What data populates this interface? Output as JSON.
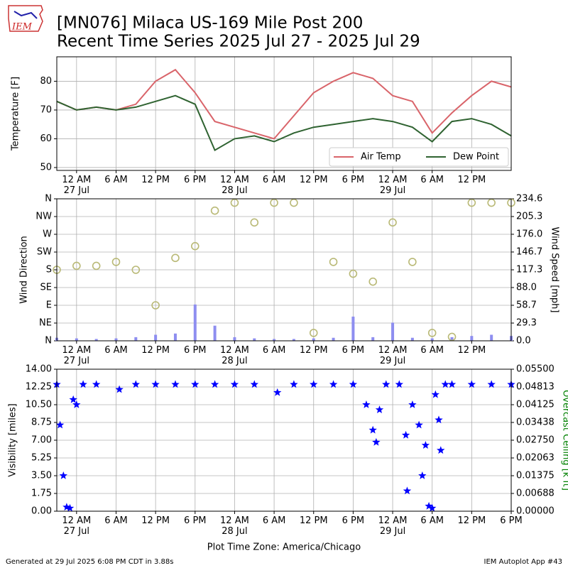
{
  "header": {
    "title_line1": "[MN076] Milaca US-169 Mile Post 200",
    "title_line2": "Recent Time Series 2025 Jul 27 - 2025 Jul 29",
    "logo_text": "IEM"
  },
  "footer": {
    "left": "Generated at 29 Jul 2025 6:08 PM CDT in 3.88s",
    "right": "IEM Autoplot App #43"
  },
  "chart_data": [
    {
      "type": "line",
      "ylabel": "Temperature [F]",
      "grid": true,
      "legend": "lower right",
      "xlim": [
        "2025-07-26T21:00",
        "2025-07-29T18:00"
      ],
      "ylim": [
        49,
        88.5
      ],
      "yticks": [
        50,
        60,
        70,
        80
      ],
      "xticks": [
        {
          "value": "2025-07-27T00:00",
          "label": "12 AM\n27 Jul"
        },
        {
          "value": "2025-07-27T06:00",
          "label": "6 AM"
        },
        {
          "value": "2025-07-27T12:00",
          "label": "12 PM"
        },
        {
          "value": "2025-07-27T18:00",
          "label": "6 PM"
        },
        {
          "value": "2025-07-28T00:00",
          "label": "12 AM\n28 Jul"
        },
        {
          "value": "2025-07-28T06:00",
          "label": "6 AM"
        },
        {
          "value": "2025-07-28T12:00",
          "label": "12 PM"
        },
        {
          "value": "2025-07-28T18:00",
          "label": "6 PM"
        },
        {
          "value": "2025-07-29T00:00",
          "label": "12 AM\n29 Jul"
        },
        {
          "value": "2025-07-29T06:00",
          "label": "6 AM"
        },
        {
          "value": "2025-07-29T12:00",
          "label": "12 PM"
        }
      ],
      "x": [
        "2025-07-26T21:00",
        "2025-07-27T00:00",
        "2025-07-27T03:00",
        "2025-07-27T06:00",
        "2025-07-27T09:00",
        "2025-07-27T12:00",
        "2025-07-27T15:00",
        "2025-07-27T18:00",
        "2025-07-27T21:00",
        "2025-07-28T00:00",
        "2025-07-28T03:00",
        "2025-07-28T06:00",
        "2025-07-28T09:00",
        "2025-07-28T12:00",
        "2025-07-28T15:00",
        "2025-07-28T18:00",
        "2025-07-28T21:00",
        "2025-07-29T00:00",
        "2025-07-29T03:00",
        "2025-07-29T06:00",
        "2025-07-29T09:00",
        "2025-07-29T12:00",
        "2025-07-29T15:00",
        "2025-07-29T18:00"
      ],
      "series": [
        {
          "name": "Air Temp",
          "color": "#d9646a",
          "marker": "line",
          "values": [
            73,
            70,
            71,
            70,
            72,
            80,
            84,
            76,
            66,
            64,
            62,
            60,
            68,
            76,
            80,
            83,
            81,
            75,
            73,
            62,
            69,
            75,
            80,
            78
          ]
        },
        {
          "name": "Dew Point",
          "color": "#2f6331",
          "marker": "line",
          "values": [
            73,
            70,
            71,
            70,
            71,
            73,
            75,
            72,
            56,
            60,
            61,
            59,
            62,
            64,
            65,
            66,
            67,
            66,
            64,
            59,
            66,
            67,
            65,
            61
          ]
        }
      ]
    },
    {
      "type": "combo",
      "ylabel": "Wind Direction",
      "y2label": "Wind Speed [mph]",
      "grid": true,
      "xlim": [
        "2025-07-26T21:00",
        "2025-07-29T18:00"
      ],
      "ylim": [
        0,
        360
      ],
      "yticks": [
        {
          "value": 0,
          "label": "N"
        },
        {
          "value": 45,
          "label": "NE"
        },
        {
          "value": 90,
          "label": "E"
        },
        {
          "value": 135,
          "label": "SE"
        },
        {
          "value": 180,
          "label": "S"
        },
        {
          "value": 225,
          "label": "SW"
        },
        {
          "value": 270,
          "label": "W"
        },
        {
          "value": 315,
          "label": "NW"
        },
        {
          "value": 360,
          "label": "N"
        }
      ],
      "y2lim": [
        0,
        234.6
      ],
      "y2ticks": [
        {
          "value": 0,
          "label": "0.0"
        },
        29.3,
        58.7,
        {
          "value": 88,
          "label": "88.0"
        },
        117.3,
        146.7,
        {
          "value": 176,
          "label": "176.0"
        },
        205.3,
        234.6
      ],
      "xticks": [
        {
          "value": "2025-07-27T00:00",
          "label": "12 AM\n27 Jul"
        },
        {
          "value": "2025-07-27T06:00",
          "label": "6 AM"
        },
        {
          "value": "2025-07-27T12:00",
          "label": "12 PM"
        },
        {
          "value": "2025-07-27T18:00",
          "label": "6 PM"
        },
        {
          "value": "2025-07-28T00:00",
          "label": "12 AM\n28 Jul"
        },
        {
          "value": "2025-07-28T06:00",
          "label": "6 AM"
        },
        {
          "value": "2025-07-28T12:00",
          "label": "12 PM"
        },
        {
          "value": "2025-07-28T18:00",
          "label": "6 PM"
        },
        {
          "value": "2025-07-29T00:00",
          "label": "12 AM\n29 Jul"
        },
        {
          "value": "2025-07-29T06:00",
          "label": "6 AM"
        },
        {
          "value": "2025-07-29T12:00",
          "label": "12 PM"
        }
      ],
      "x": [
        "2025-07-26T21:00",
        "2025-07-27T00:00",
        "2025-07-27T03:00",
        "2025-07-27T06:00",
        "2025-07-27T09:00",
        "2025-07-27T12:00",
        "2025-07-27T15:00",
        "2025-07-27T18:00",
        "2025-07-27T21:00",
        "2025-07-28T00:00",
        "2025-07-28T03:00",
        "2025-07-28T06:00",
        "2025-07-28T09:00",
        "2025-07-28T12:00",
        "2025-07-28T15:00",
        "2025-07-28T18:00",
        "2025-07-28T21:00",
        "2025-07-29T00:00",
        "2025-07-29T03:00",
        "2025-07-29T06:00",
        "2025-07-29T09:00",
        "2025-07-29T12:00",
        "2025-07-29T15:00",
        "2025-07-29T18:00"
      ],
      "series": [
        {
          "color": "#8e8ef0",
          "marker": "bar",
          "axis": "y2",
          "values": [
            5,
            4,
            3,
            4,
            6,
            10,
            12,
            60,
            25,
            6,
            4,
            3,
            3,
            4,
            5,
            40,
            6,
            30,
            5,
            4,
            6,
            8,
            10,
            8
          ]
        },
        {
          "color": "#b9b976",
          "marker": "circle",
          "values": [
            180,
            190,
            190,
            200,
            180,
            90,
            210,
            240,
            330,
            350,
            300,
            350,
            350,
            20,
            200,
            170,
            150,
            300,
            200,
            20,
            10,
            350,
            350,
            350
          ]
        }
      ]
    },
    {
      "type": "scatter",
      "ylabel": "Visibility [miles]",
      "y2label": "Overcast Ceiling [k ft]",
      "y2color": "green",
      "xlabel": "Plot Time Zone: America/Chicago",
      "grid": true,
      "xlim": [
        "2025-07-26T21:00",
        "2025-07-29T18:00"
      ],
      "ylim": [
        0,
        14
      ],
      "yticks": [
        {
          "value": 0,
          "label": "0.00"
        },
        1.75,
        {
          "value": 3.5,
          "label": "3.50"
        },
        5.25,
        {
          "value": 7,
          "label": "7.00"
        },
        8.75,
        {
          "value": 10.5,
          "label": "10.50"
        },
        12.25,
        {
          "value": 14,
          "label": "14.00"
        }
      ],
      "y2lim": [
        0,
        0.055
      ],
      "y2ticks": [
        {
          "value": 0,
          "label": "0.00000"
        },
        {
          "value": 0.006875,
          "label": "0.00688"
        },
        0.01375,
        {
          "value": 0.020625,
          "label": "0.02063"
        },
        {
          "value": 0.0275,
          "label": "0.02750"
        },
        {
          "value": 0.034375,
          "label": "0.03438"
        },
        0.04125,
        {
          "value": 0.048125,
          "label": "0.04813"
        },
        {
          "value": 0.055,
          "label": "0.05500"
        }
      ],
      "xticks": [
        {
          "value": "2025-07-27T00:00",
          "label": "12 AM\n27 Jul"
        },
        {
          "value": "2025-07-27T06:00",
          "label": "6 AM"
        },
        {
          "value": "2025-07-27T12:00",
          "label": "12 PM"
        },
        {
          "value": "2025-07-27T18:00",
          "label": "6 PM"
        },
        {
          "value": "2025-07-28T00:00",
          "label": "12 AM\n28 Jul"
        },
        {
          "value": "2025-07-28T06:00",
          "label": "6 AM"
        },
        {
          "value": "2025-07-28T12:00",
          "label": "12 PM"
        },
        {
          "value": "2025-07-28T18:00",
          "label": "6 PM"
        },
        {
          "value": "2025-07-29T00:00",
          "label": "12 AM\n29 Jul"
        },
        {
          "value": "2025-07-29T06:00",
          "label": "6 AM"
        },
        {
          "value": "2025-07-29T12:00",
          "label": "12 PM"
        },
        {
          "value": "2025-07-29T18:00",
          "label": "6 PM"
        }
      ],
      "x": [
        "2025-07-26T21:00",
        "2025-07-26T21:30",
        "2025-07-26T22:00",
        "2025-07-26T22:30",
        "2025-07-26T23:00",
        "2025-07-26T23:30",
        "2025-07-27T00:00",
        "2025-07-27T01:00",
        "2025-07-27T03:00",
        "2025-07-27T06:30",
        "2025-07-27T09:00",
        "2025-07-27T12:00",
        "2025-07-27T15:00",
        "2025-07-27T18:00",
        "2025-07-27T21:00",
        "2025-07-28T00:00",
        "2025-07-28T03:00",
        "2025-07-28T06:30",
        "2025-07-28T09:00",
        "2025-07-28T12:00",
        "2025-07-28T15:00",
        "2025-07-28T18:00",
        "2025-07-28T20:00",
        "2025-07-28T21:00",
        "2025-07-28T21:30",
        "2025-07-28T22:00",
        "2025-07-28T23:00",
        "2025-07-29T01:00",
        "2025-07-29T02:00",
        "2025-07-29T02:12",
        "2025-07-29T03:00",
        "2025-07-29T04:00",
        "2025-07-29T04:30",
        "2025-07-29T05:00",
        "2025-07-29T05:30",
        "2025-07-29T06:00",
        "2025-07-29T06:30",
        "2025-07-29T07:00",
        "2025-07-29T07:18",
        "2025-07-29T08:00",
        "2025-07-29T09:00",
        "2025-07-29T12:00",
        "2025-07-29T15:00",
        "2025-07-29T18:00"
      ],
      "series": [
        {
          "color": "blue",
          "marker": "star",
          "values": [
            12.5,
            8.5,
            3.5,
            0.4,
            0.3,
            11,
            10.5,
            12.5,
            12.5,
            12,
            12.5,
            12.5,
            12.5,
            12.5,
            12.5,
            12.5,
            12.5,
            11.7,
            12.5,
            12.5,
            12.5,
            12.5,
            10.5,
            8,
            6.8,
            10,
            12.5,
            12.5,
            7.5,
            2,
            10.5,
            8.5,
            3.5,
            6.5,
            0.5,
            0.3,
            11.5,
            9,
            6,
            12.5,
            12.5,
            12.5,
            12.5,
            12.5
          ]
        }
      ]
    }
  ]
}
